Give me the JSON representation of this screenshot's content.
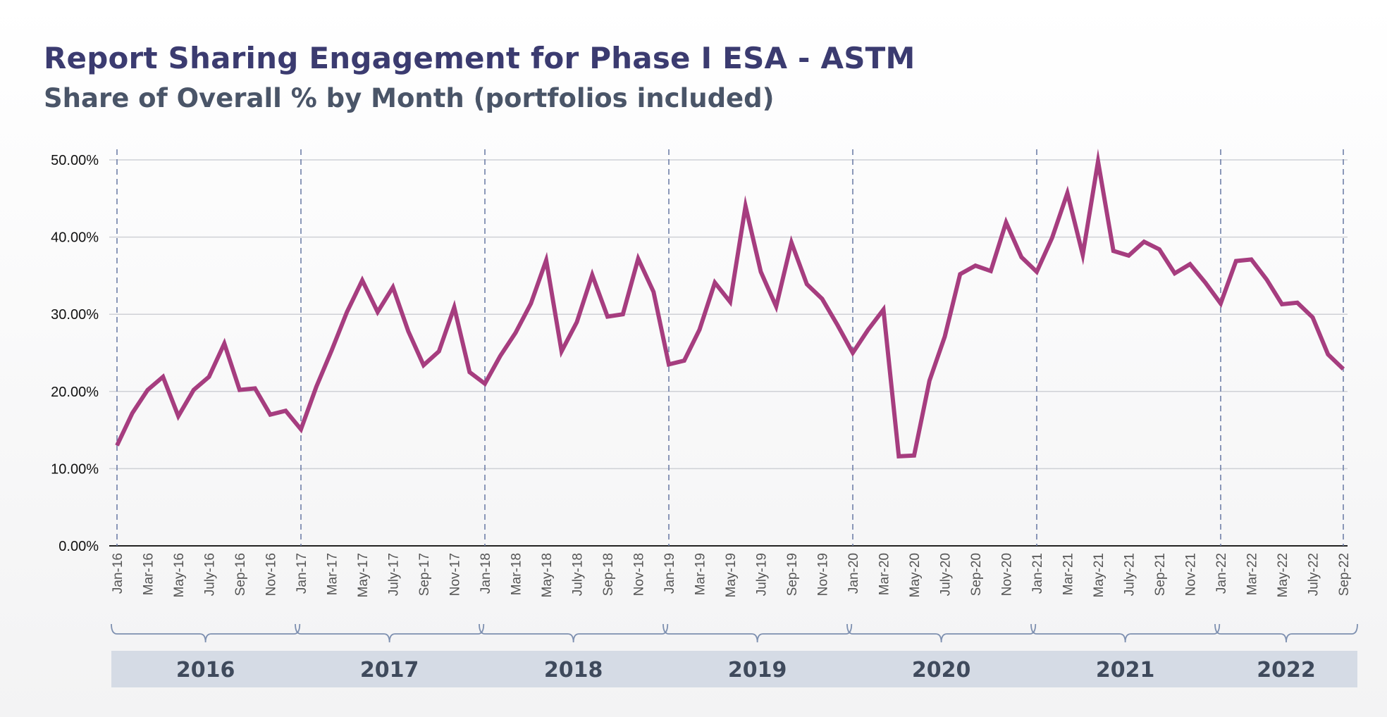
{
  "title": "Report Sharing Engagement for Phase I ESA - ASTM",
  "subtitle": "Share of Overall % by Month (portfolios included)",
  "colors": {
    "line": "#a63d7f",
    "grid": "#cfd1d6",
    "year_divider": "#6f7fa8",
    "year_box": "#d5dbe5",
    "bracket": "#7e90b0"
  },
  "chart_data": {
    "type": "line",
    "title": "Report Sharing Engagement for Phase I ESA - ASTM",
    "subtitle": "Share of Overall % by Month (portfolios included)",
    "ylim": [
      0,
      50
    ],
    "yticks": [
      "0.00%",
      "10.00%",
      "20.00%",
      "30.00%",
      "40.00%",
      "50.00%"
    ],
    "grid": true,
    "x": [
      "Jan-16",
      "Feb-16",
      "Mar-16",
      "Apr-16",
      "May-16",
      "Jun-16",
      "Jul-16",
      "Aug-16",
      "Sep-16",
      "Oct-16",
      "Nov-16",
      "Dec-16",
      "Jan-17",
      "Feb-17",
      "Mar-17",
      "Apr-17",
      "May-17",
      "Jun-17",
      "Jul-17",
      "Aug-17",
      "Sep-17",
      "Oct-17",
      "Nov-17",
      "Dec-17",
      "Jan-18",
      "Feb-18",
      "Mar-18",
      "Apr-18",
      "May-18",
      "Jun-18",
      "Jul-18",
      "Aug-18",
      "Sep-18",
      "Oct-18",
      "Nov-18",
      "Dec-18",
      "Jan-19",
      "Feb-19",
      "Mar-19",
      "Apr-19",
      "May-19",
      "Jun-19",
      "Jul-19",
      "Aug-19",
      "Sep-19",
      "Oct-19",
      "Nov-19",
      "Dec-19",
      "Jan-20",
      "Feb-20",
      "Mar-20",
      "Apr-20",
      "May-20",
      "Jun-20",
      "Jul-20",
      "Aug-20",
      "Sep-20",
      "Oct-20",
      "Nov-20",
      "Dec-20",
      "Jan-21",
      "Feb-21",
      "Mar-21",
      "Apr-21",
      "May-21",
      "Jun-21",
      "Jul-21",
      "Aug-21",
      "Sep-21",
      "Oct-21",
      "Nov-21",
      "Dec-21",
      "Jan-22",
      "Feb-22",
      "Mar-22",
      "Apr-22",
      "May-22",
      "Jun-22",
      "Jul-22",
      "Aug-22",
      "Sep-22"
    ],
    "x_tick_labels": [
      "Jan-16",
      "Mar-16",
      "May-16",
      "July-16",
      "Sep-16",
      "Nov-16",
      "Jan-17",
      "Mar-17",
      "May-17",
      "July-17",
      "Sep-17",
      "Nov-17",
      "Jan-18",
      "Mar-18",
      "May-18",
      "July-18",
      "Sep-18",
      "Nov-18",
      "Jan-19",
      "Mar-19",
      "May-19",
      "July-19",
      "Sep-19",
      "Nov-19",
      "Jan-20",
      "Mar-20",
      "May-20",
      "July-20",
      "Sep-20",
      "Nov-20",
      "Jan-21",
      "Mar-21",
      "May-21",
      "July-21",
      "Sep-21",
      "Nov-21",
      "Jan-22",
      "Mar-22",
      "May-22",
      "July-22",
      "Sep-22"
    ],
    "series": [
      {
        "values": [
          13.0,
          17.2,
          20.2,
          21.9,
          16.8,
          20.2,
          21.9,
          26.2,
          20.2,
          20.4,
          17.0,
          17.5,
          15.1,
          20.6,
          25.3,
          30.3,
          34.4,
          30.3,
          33.5,
          27.8,
          23.4,
          25.2,
          30.9,
          22.5,
          21.0,
          24.6,
          27.6,
          31.4,
          37.0,
          25.2,
          29.0,
          35.1,
          29.7,
          30.0,
          37.2,
          32.9,
          23.5,
          24.0,
          28.0,
          34.1,
          31.6,
          44.0,
          35.5,
          31.0,
          39.3,
          33.9,
          32.0,
          28.6,
          25.0,
          28.0,
          30.6,
          11.6,
          11.7,
          21.4,
          27.1,
          35.2,
          36.3,
          35.6,
          41.9,
          37.4,
          35.5,
          39.9,
          45.7,
          37.7,
          49.8,
          38.2,
          37.6,
          39.4,
          38.4,
          35.3,
          36.5,
          34.1,
          31.4,
          36.9,
          37.1,
          34.5,
          31.3,
          31.5,
          29.6,
          24.8,
          22.9
        ]
      }
    ],
    "year_groups": [
      {
        "label": "2016",
        "months": 12
      },
      {
        "label": "2017",
        "months": 12
      },
      {
        "label": "2018",
        "months": 12
      },
      {
        "label": "2019",
        "months": 12
      },
      {
        "label": "2020",
        "months": 12
      },
      {
        "label": "2021",
        "months": 12
      },
      {
        "label": "2022",
        "months": 9
      }
    ]
  }
}
